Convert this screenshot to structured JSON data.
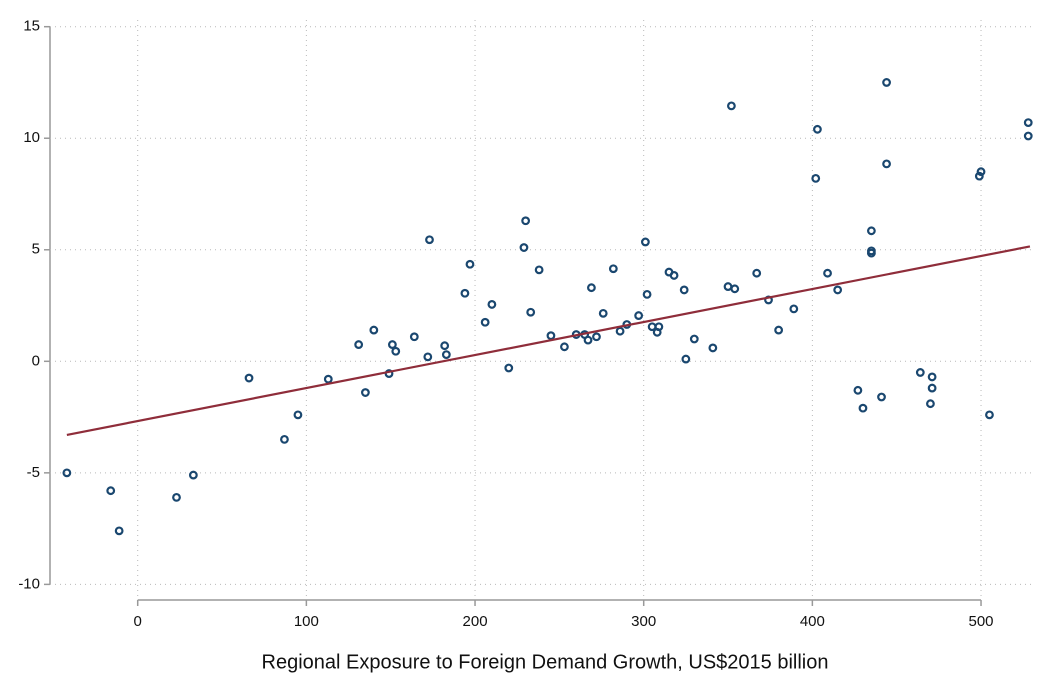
{
  "chart_data": {
    "type": "scatter",
    "x_label": "Regional Exposure to Foreign Demand Growth, US$2015 billion",
    "xlim": [
      -52,
      532
    ],
    "ylim": [
      -10.7,
      15.3
    ],
    "xticks": [
      0,
      100,
      200,
      300,
      400,
      500
    ],
    "yticks": [
      -10,
      -5,
      0,
      5,
      10,
      15
    ],
    "grid": true,
    "series": [
      {
        "type": "scatter",
        "color": "#1a476f",
        "x": [
          -42,
          -16,
          -11,
          23,
          33,
          66,
          87,
          95,
          113,
          131,
          135,
          140,
          149,
          151,
          153,
          164,
          172,
          173,
          182,
          183,
          194,
          197,
          206,
          210,
          220,
          229,
          230,
          233,
          238,
          245,
          253,
          260,
          265,
          267,
          269,
          272,
          276,
          282,
          286,
          290,
          297,
          301,
          302,
          305,
          308,
          309,
          315,
          318,
          324,
          325,
          330,
          341,
          350,
          352,
          354,
          367,
          374,
          380,
          389,
          402,
          403,
          409,
          415,
          427,
          430,
          435,
          435,
          435,
          441,
          444,
          444,
          464,
          470,
          471,
          471,
          499,
          500,
          505,
          528,
          528
        ],
        "values": [
          -5.0,
          -5.8,
          -7.6,
          -6.1,
          -5.1,
          -0.75,
          -3.5,
          -2.4,
          -0.8,
          0.75,
          -1.4,
          1.4,
          -0.55,
          0.75,
          0.45,
          1.1,
          0.2,
          5.45,
          0.7,
          0.3,
          3.05,
          4.35,
          1.75,
          2.55,
          -0.3,
          5.1,
          6.3,
          2.2,
          4.1,
          1.15,
          0.65,
          1.2,
          1.2,
          0.95,
          3.3,
          1.1,
          2.15,
          4.15,
          1.35,
          1.65,
          2.05,
          5.35,
          3.0,
          1.55,
          1.3,
          1.55,
          4.0,
          3.85,
          3.2,
          0.1,
          1.0,
          0.6,
          3.35,
          11.45,
          3.25,
          3.95,
          2.75,
          1.4,
          2.35,
          8.2,
          10.4,
          3.95,
          3.2,
          -1.3,
          -2.1,
          5.85,
          4.95,
          4.85,
          -1.6,
          12.5,
          8.85,
          -0.5,
          -1.9,
          -0.7,
          -1.2,
          8.3,
          8.5,
          -2.4,
          10.7,
          10.1
        ]
      },
      {
        "type": "line",
        "color": "#8f2d3a",
        "x": [
          -42,
          529
        ],
        "values": [
          -3.3,
          5.15
        ]
      }
    ]
  }
}
